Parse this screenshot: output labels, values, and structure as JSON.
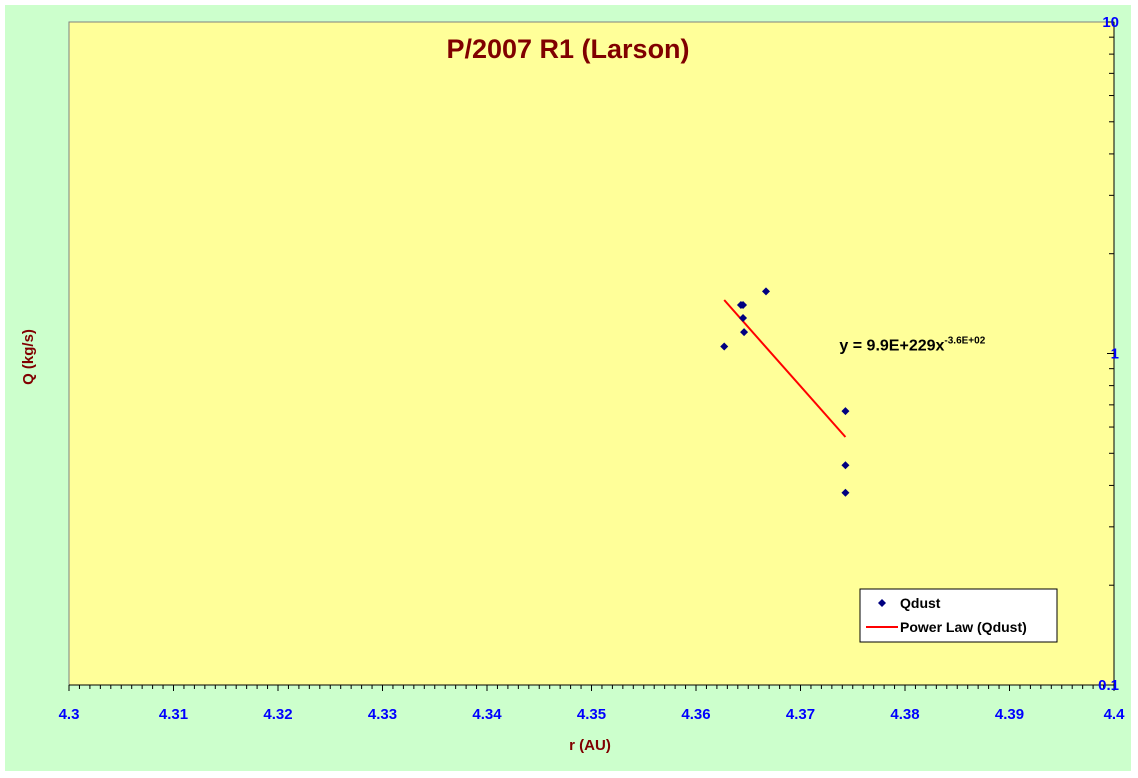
{
  "chart_data": {
    "type": "scatter",
    "title": "P/2007 R1 (Larson)",
    "xlabel": "r (AU)",
    "ylabel": "Q (kg/s)",
    "xlim": [
      4.3,
      4.4
    ],
    "ylim": [
      0.1,
      10
    ],
    "yscale": "log",
    "grid": false,
    "legend_position": "bottom-right",
    "x_ticks": [
      "4.3",
      "4.31",
      "4.32",
      "4.33",
      "4.34",
      "4.35",
      "4.36",
      "4.37",
      "4.38",
      "4.39",
      "4.4"
    ],
    "y_ticks": [
      "0.1",
      "1",
      "10"
    ],
    "series": [
      {
        "name": "Qdust",
        "marker": "diamond",
        "color": "#000080",
        "x": [
          4.3627,
          4.3643,
          4.3645,
          4.3645,
          4.3646,
          4.3667,
          4.3743,
          4.3743,
          4.3743
        ],
        "y": [
          1.05,
          1.4,
          1.4,
          1.28,
          1.16,
          1.54,
          0.67,
          0.46,
          0.38
        ]
      }
    ],
    "trendline": {
      "name": "Power Law (Qdust)",
      "color": "#ff0000",
      "x": [
        4.3627,
        4.3743
      ],
      "y": [
        1.45,
        0.56
      ]
    },
    "annotations": [
      {
        "text": "y = 9.9E+229x",
        "superscript": "-3.6E+02",
        "x": 4.3743,
        "y": 1.02
      }
    ],
    "plot_bg": "#ffff99",
    "chart_bg": "#ccffcc"
  }
}
